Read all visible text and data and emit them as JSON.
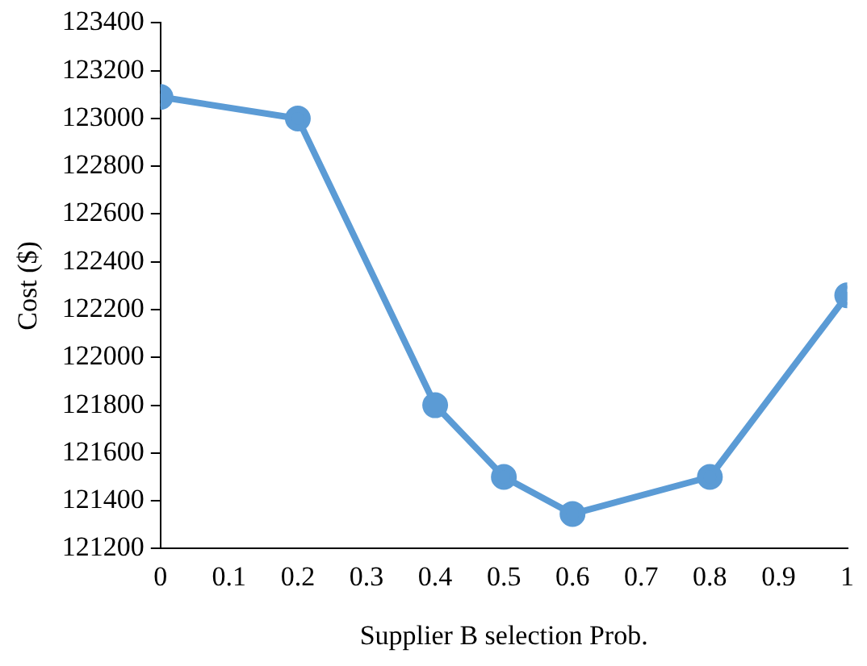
{
  "chart_data": {
    "type": "line",
    "xlabel": "Supplier B selection Prob.",
    "ylabel": "Cost ($)",
    "x": [
      0,
      0.2,
      0.4,
      0.5,
      0.6,
      0.8,
      1
    ],
    "series": [
      {
        "color": "#5b9bd5",
        "values": [
          123090,
          123000,
          121800,
          121500,
          121345,
          121500,
          122260
        ]
      }
    ],
    "xlim": [
      0,
      1
    ],
    "xticks": [
      0,
      0.1,
      0.2,
      0.3,
      0.4,
      0.5,
      0.6,
      0.7,
      0.8,
      0.9,
      1
    ],
    "ylim": [
      121200,
      123400
    ],
    "yticks": [
      121200,
      121400,
      121600,
      121800,
      122000,
      122200,
      122400,
      122600,
      122800,
      123000,
      123200,
      123400
    ],
    "grid": false,
    "legend": false,
    "marker": "circle",
    "line_style": "solid"
  }
}
